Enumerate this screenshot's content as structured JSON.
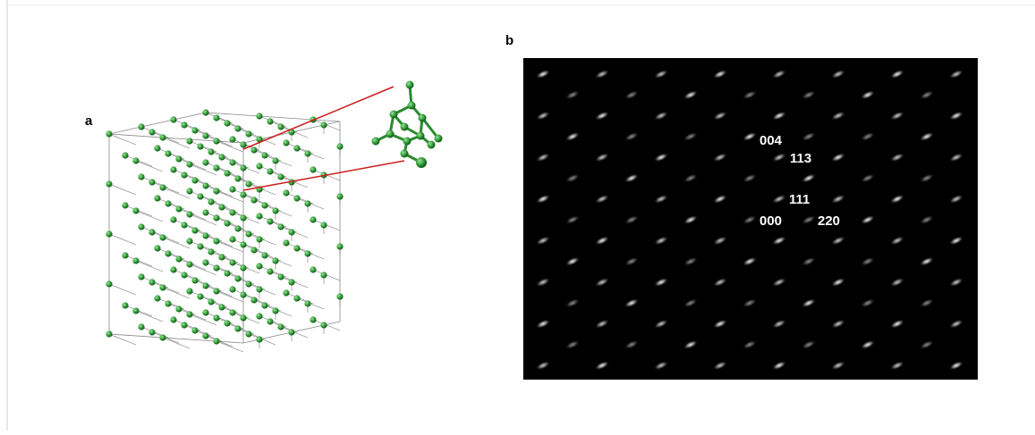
{
  "panels": [
    {
      "label": "a"
    },
    {
      "label": "b",
      "spot_labels": [
        "004",
        "113",
        "111",
        "000",
        "220"
      ]
    }
  ]
}
